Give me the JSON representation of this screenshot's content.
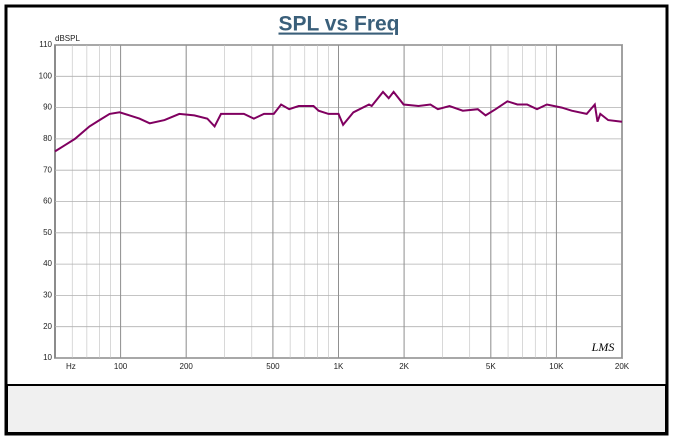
{
  "chart_data": {
    "type": "line",
    "title": "SPL vs Freq",
    "y_label": "dBSPL",
    "x_unit": "Hz",
    "watermark": "LMS",
    "log_x": true,
    "grid": true,
    "minor_grid": true,
    "xlim": [
      50,
      20000
    ],
    "xticks": [
      100,
      200,
      500,
      {
        "value": 1000,
        "label": "1K"
      },
      {
        "value": 2000,
        "label": "2K"
      },
      {
        "value": 5000,
        "label": "5K"
      },
      {
        "value": 10000,
        "label": "10K"
      },
      {
        "value": 20000,
        "label": "20K"
      }
    ],
    "ylim": [
      10,
      110
    ],
    "yticks": [
      10,
      20,
      30,
      40,
      50,
      60,
      70,
      80,
      90,
      100,
      110
    ],
    "series": [
      {
        "name": "SPL",
        "color": "#800060",
        "x": [
          50,
          55.5,
          61.7,
          72,
          80,
          89,
          99,
          110,
          122,
          136,
          159,
          186,
          218,
          250,
          270,
          289,
          368,
          409,
          455,
          505,
          545,
          594,
          657,
          768,
          810,
          900,
          1000,
          1050,
          1170,
          1380,
          1420,
          1600,
          1700,
          1790,
          1990,
          2330,
          2640,
          2860,
          3230,
          3720,
          4360,
          4730,
          5260,
          5960,
          6620,
          7340,
          8150,
          9040,
          10590,
          11760,
          13770,
          15000,
          15440,
          15900,
          17280,
          20000
        ],
        "values": [
          76,
          78,
          80,
          84,
          86,
          88,
          88.5,
          87.5,
          86.5,
          85,
          86,
          88,
          87.5,
          86.5,
          84,
          88,
          88,
          86.5,
          88,
          88,
          91,
          89.5,
          90.5,
          90.5,
          89,
          88,
          88,
          84.5,
          88.5,
          91,
          90.5,
          95,
          93,
          95,
          91,
          90.5,
          91,
          89.5,
          90.5,
          89,
          89.5,
          87.5,
          89.5,
          92,
          91,
          91,
          89.5,
          91,
          90,
          89,
          88,
          91,
          85.5,
          88,
          86,
          85.5
        ]
      }
    ]
  }
}
